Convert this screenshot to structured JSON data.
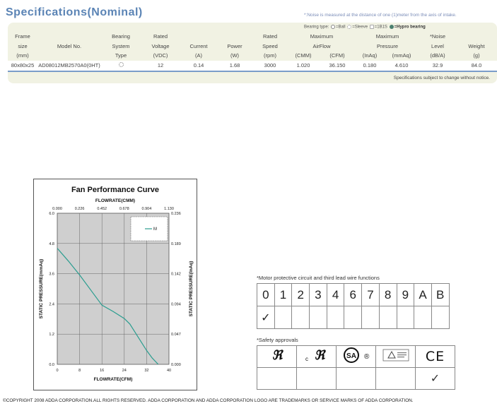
{
  "title": "Specifications(Nominal)",
  "noise_note": "*:Noise is measured at the distance of one (1)meter from the axis of intake.",
  "bearing_legend": {
    "prefix": "Bearing type:",
    "ball": "=Ball",
    "sleeve": "=Sleeve",
    "one_b_one_s": "=1B1S",
    "hypro": "=Hypro bearing"
  },
  "spec_table": {
    "header_rows": [
      [
        "Frame",
        "",
        "Bearing",
        "Rated",
        "",
        "",
        "Rated",
        "Maximum",
        "",
        "Maximum",
        "",
        "*Noise",
        ""
      ],
      [
        "size",
        "Model No.",
        "System",
        "Voltage",
        "Current",
        "Power",
        "Speed",
        "AirFlow",
        "",
        "Pressure",
        "",
        "Level",
        "Weight"
      ],
      [
        "(mm)",
        "",
        "Type",
        "(VDC)",
        "(A)",
        "(W)",
        "(rpm)",
        "(CMM)",
        "(CFM)",
        "(InAq)",
        "(mmAq)",
        "(dB/A)",
        "(g)"
      ]
    ],
    "row": [
      "80x80x25",
      "AD08012MB2570A0(0HT)",
      "",
      "12",
      "0.14",
      "1.68",
      "3000",
      "1.020",
      "36.150",
      "0.180",
      "4.610",
      "32.9",
      "84.0"
    ],
    "bearing_icon": "sleeve-bearing-icon"
  },
  "spec_footnote": "Specifications subject to change without notice.",
  "chart_data": {
    "type": "line",
    "title": "Fan Performance Curve",
    "xlabel": "FLOWRATE(CFM)",
    "x2label": "FLOWRATE(CMM)",
    "ylabel": "STATIC PRESSURE(mmAq)",
    "y2label": "STATIC PRESSURE(InAq)",
    "xlim": [
      0,
      40
    ],
    "ylim": [
      0,
      6.0
    ],
    "x_ticks": [
      "0",
      "8",
      "16",
      "24",
      "32",
      "40"
    ],
    "x2_ticks": [
      "0.000",
      "0.226",
      "0.452",
      "0.678",
      "0.904",
      "1.130"
    ],
    "y_ticks": [
      "0.0",
      "1.2",
      "2.4",
      "3.6",
      "4.8",
      "6.0"
    ],
    "y2_ticks": [
      "0.000",
      "0.047",
      "0.094",
      "0.142",
      "0.189",
      "0.236"
    ],
    "grid": true,
    "legend_position": "top-right",
    "series": [
      {
        "name": "M",
        "color": "#2a9d8f",
        "x": [
          0,
          4,
          8,
          12,
          16,
          20,
          24,
          26,
          28,
          30,
          32,
          34,
          36.15
        ],
        "y": [
          4.61,
          4.1,
          3.55,
          2.95,
          2.35,
          2.1,
          1.82,
          1.6,
          1.25,
          0.9,
          0.55,
          0.25,
          0
        ]
      }
    ]
  },
  "motor_section": {
    "title": "*Motor protective circuit and third lead wire functions",
    "codes": [
      "0",
      "1",
      "2",
      "3",
      "4",
      "6",
      "7",
      "8",
      "9",
      "A",
      "B"
    ],
    "checks": [
      "✓",
      "",
      "",
      "",
      "",
      "",
      "",
      "",
      "",
      "",
      ""
    ]
  },
  "safety_section": {
    "title": "*Safety approvals",
    "logos": [
      "ul-logo",
      "cul-logo",
      "csa-logo",
      "tuv-logo",
      "ce-logo"
    ],
    "ce_text": "CE",
    "csa_reg": "®",
    "cul_c": "c",
    "checks": [
      "",
      "",
      "",
      "",
      "✓"
    ]
  },
  "copyright": "©COPYRIGHT 2008 ADDA CORPORATION.ALL RIGHTS RESERVED. ADDA CORPORATION AND ADDA  CORPORATION LOGO ARE TRADEMARKS OR SERVICE MARKS OF ADDA CORPORATION."
}
